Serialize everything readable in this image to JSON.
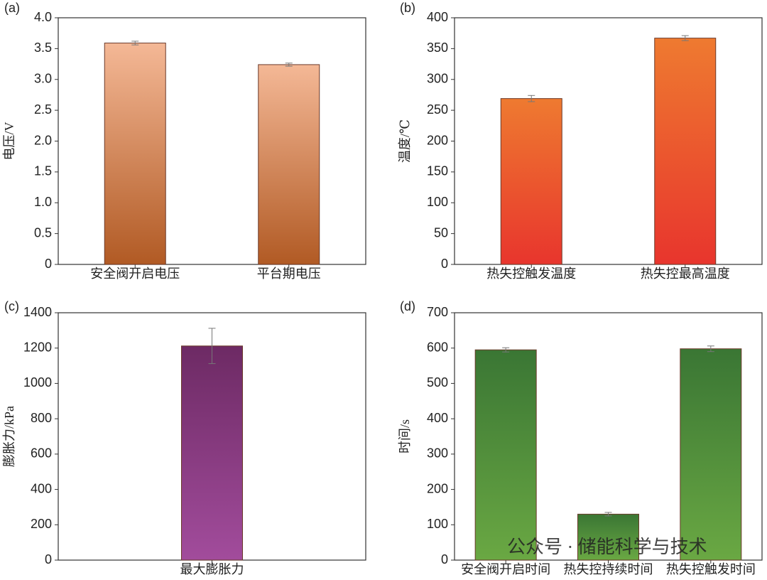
{
  "chart_data": [
    {
      "type": "bar",
      "label": "(a)",
      "ylabel": "电压/V",
      "categories": [
        "安全阀开启电压",
        "平台期电压"
      ],
      "values": [
        3.59,
        3.24
      ],
      "errors": [
        0.03,
        0.025
      ],
      "gradient": [
        "#f4b896",
        "#b15a24"
      ],
      "ylim": [
        0,
        4
      ],
      "yticks": [
        0,
        0.5,
        {
          "value": 1,
          "label": "1.0"
        },
        1.5,
        {
          "value": 2,
          "label": "2.0"
        },
        2.5,
        {
          "value": 3,
          "label": "3.0"
        },
        3.5,
        {
          "value": 4,
          "label": "4.0"
        }
      ]
    },
    {
      "type": "bar",
      "label": "(b)",
      "ylabel": "温度/℃",
      "categories": [
        "热失控触发温度",
        "热失控最高温度"
      ],
      "values": [
        269,
        367
      ],
      "errors": [
        5,
        4
      ],
      "gradient": [
        "#ee7a30",
        "#e8352d"
      ],
      "ylim": [
        0,
        400
      ],
      "yticks": [
        0,
        50,
        100,
        150,
        200,
        250,
        300,
        350,
        400
      ]
    },
    {
      "type": "bar",
      "label": "(c)",
      "ylabel": "膨胀力/kPa",
      "categories": [
        "最大膨胀力"
      ],
      "values": [
        1212
      ],
      "errors": [
        100
      ],
      "gradient": [
        "#6d2a64",
        "#a24c9c"
      ],
      "ylim": [
        0,
        1400
      ],
      "yticks": [
        0,
        200,
        400,
        600,
        800,
        1000,
        1200,
        1400
      ]
    },
    {
      "type": "bar",
      "label": "(d)",
      "ylabel": "时间/s",
      "categories": [
        "安全阀开启时间",
        "热失控持续时间",
        "热失控触发时间"
      ],
      "values": [
        595,
        130,
        598
      ],
      "errors": [
        6,
        5,
        8
      ],
      "gradient": [
        "#3a7634",
        "#6aa843"
      ],
      "ylim": [
        0,
        700
      ],
      "yticks": [
        0,
        100,
        200,
        300,
        400,
        500,
        600,
        700
      ],
      "watermark": "公众号 · 储能科学与技术"
    }
  ]
}
